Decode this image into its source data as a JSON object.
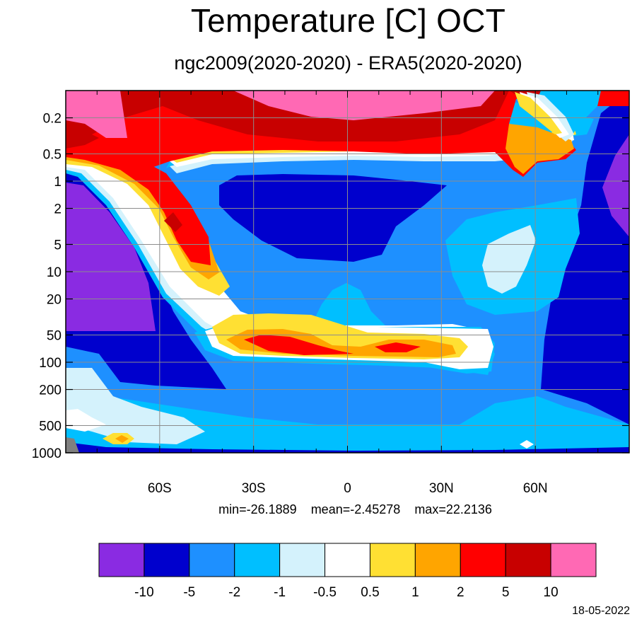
{
  "chart_data": {
    "type": "heatmap",
    "title": "Temperature [C] OCT",
    "subtitle": "ngc2009(2020-2020) - ERA5(2020-2020)",
    "x_ticks": [
      {
        "label": "60S",
        "value": -60
      },
      {
        "label": "30S",
        "value": -30
      },
      {
        "label": "0",
        "value": 0
      },
      {
        "label": "30N",
        "value": 30
      },
      {
        "label": "60N",
        "value": 60
      }
    ],
    "x_range": [
      -90,
      90
    ],
    "y_ticks": [
      "0.2",
      "0.5",
      "1",
      "2",
      "5",
      "10",
      "20",
      "50",
      "100",
      "200",
      "500",
      "1000"
    ],
    "y_range": [
      1000,
      0.1
    ],
    "y_scale": "log",
    "stats": {
      "min": "min=-26.1889",
      "mean": "mean=-2.45278",
      "max": "max=22.2136"
    },
    "levels": [
      "-10",
      "-5",
      "-2",
      "-1",
      "-0.5",
      "0.5",
      "1",
      "2",
      "5",
      "10"
    ],
    "colors": [
      "#8a2be2",
      "#0000cd",
      "#1e90ff",
      "#00bfff",
      "#d4f2fc",
      "#ffffff",
      "#ffe033",
      "#ffa500",
      "#ff0000",
      "#c80000",
      "#ff69b4"
    ],
    "grid": true,
    "legend": "bottom colorbar"
  },
  "footer_date": "18-05-2022"
}
